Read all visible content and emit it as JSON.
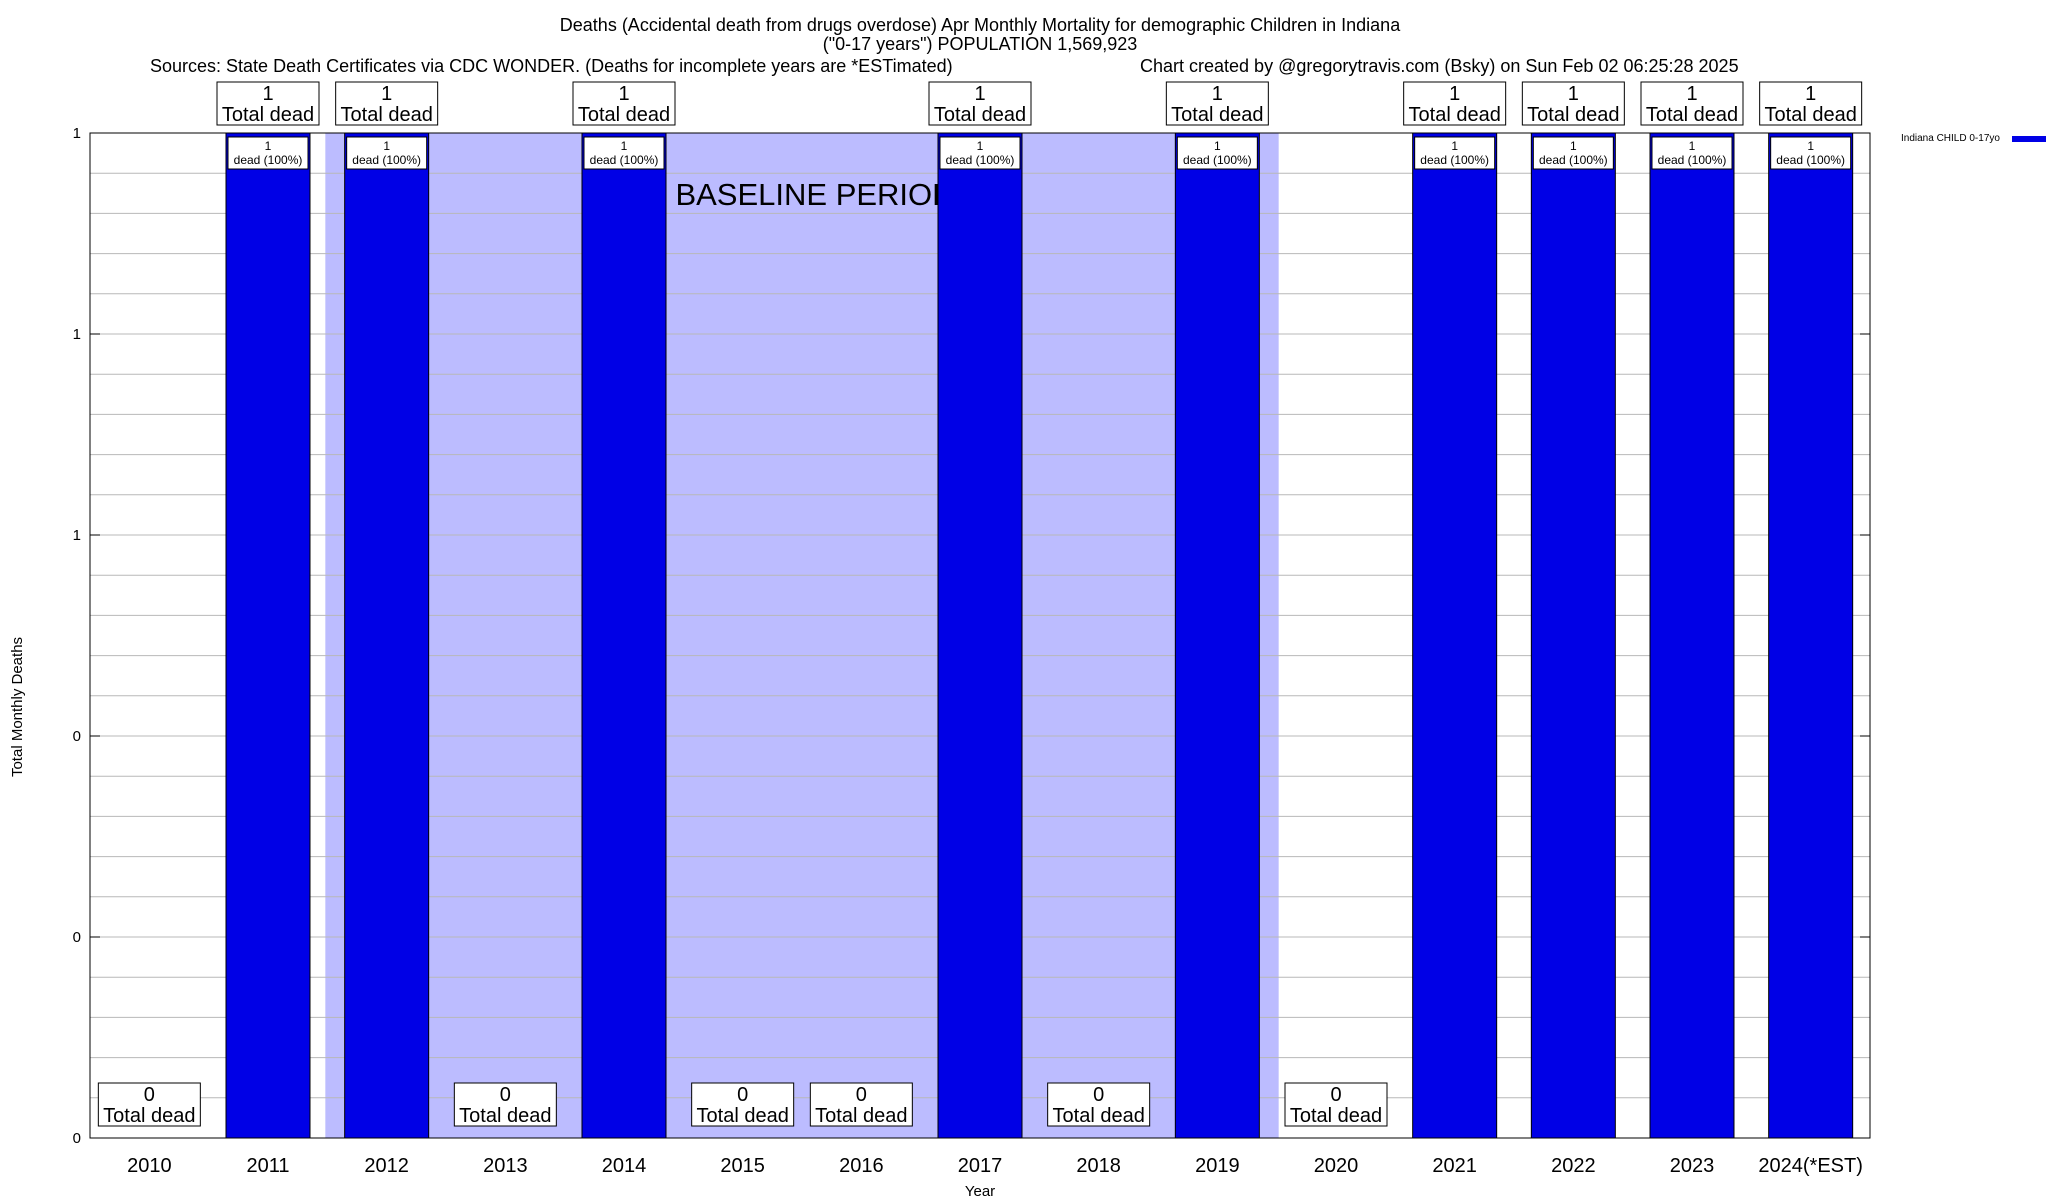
{
  "chart_data": {
    "type": "bar",
    "title_line1": "Deaths (Accidental death from drugs overdose) Apr Monthly Mortality for demographic Children in Indiana",
    "title_line2": "(\"0-17 years\") POPULATION 1,569,923",
    "source": "Sources: State Death Certificates via CDC WONDER. (Deaths for incomplete years are *ESTimated)",
    "credit": "Chart created by @gregorytravis.com (Bsky) on Sun Feb 02 06:25:28 2025",
    "xlabel": "Year",
    "ylabel": "Total Monthly Deaths",
    "categories": [
      "2010",
      "2011",
      "2012",
      "2013",
      "2014",
      "2015",
      "2016",
      "2017",
      "2018",
      "2019",
      "2020",
      "2021",
      "2022",
      "2023",
      "2024(*EST)"
    ],
    "series": [
      {
        "name": "Indiana CHILD 0-17yo",
        "color": "#0000e6",
        "values": [
          0,
          1,
          1,
          0,
          1,
          0,
          0,
          1,
          0,
          1,
          0,
          1,
          1,
          1,
          1
        ]
      }
    ],
    "ylim": [
      0,
      1
    ],
    "ytick_labels": [
      "0",
      "0",
      "0",
      "1",
      "1",
      "1"
    ],
    "total_label_suffix": "Total dead",
    "bar_label_suffix": "dead (100%)",
    "baseline": {
      "label": "BASELINE PERIOD",
      "start": "2012",
      "end": "2019",
      "color": "#bcbcff"
    },
    "grid": true,
    "legend_position": "top-right"
  }
}
